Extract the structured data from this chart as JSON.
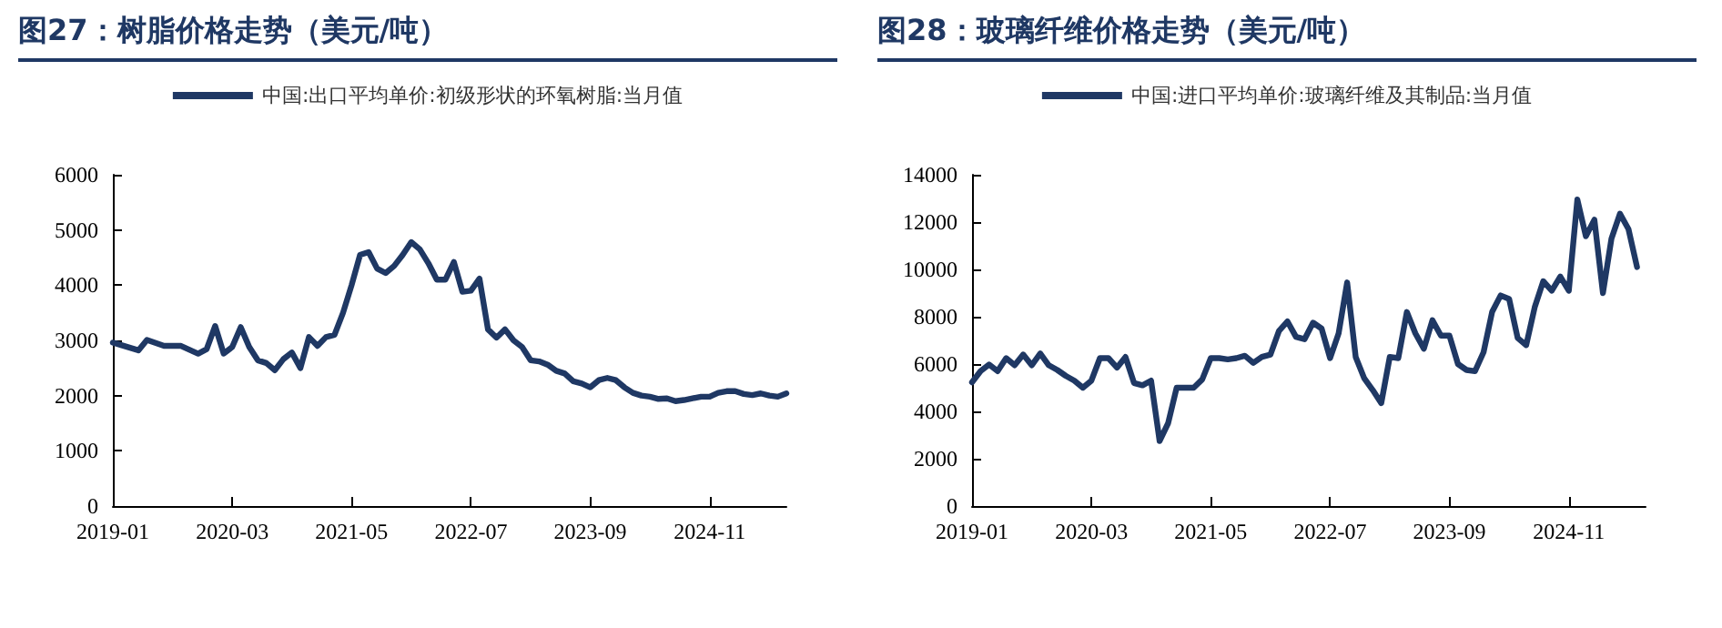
{
  "chart_data": [
    {
      "type": "line",
      "title": "图27：树脂价格走势（美元/吨）",
      "legend": "top",
      "grid": false,
      "marker": "none",
      "line_style": "solid",
      "x": [
        "2019-01",
        "2019-04",
        "2019-05",
        "2019-07",
        "2019-09",
        "2019-11",
        "2019-12",
        "2020-01",
        "2020-02",
        "2020-03",
        "2020-04",
        "2020-05",
        "2020-06",
        "2020-07",
        "2020-08",
        "2020-09",
        "2020-10",
        "2020-11",
        "2020-12",
        "2021-01",
        "2021-02",
        "2021-03",
        "2021-04",
        "2021-05",
        "2021-06",
        "2021-07",
        "2021-08",
        "2021-09",
        "2021-10",
        "2021-11",
        "2021-12",
        "2022-01",
        "2022-02",
        "2022-03",
        "2022-04",
        "2022-05",
        "2022-06",
        "2022-07",
        "2022-08",
        "2022-09",
        "2022-10",
        "2022-11",
        "2022-12",
        "2023-01",
        "2023-02",
        "2023-03",
        "2023-04",
        "2023-05",
        "2023-06",
        "2023-07",
        "2023-08",
        "2023-09",
        "2023-10",
        "2023-11",
        "2023-12",
        "2024-01",
        "2024-02",
        "2024-03",
        "2024-04",
        "2024-05",
        "2024-06",
        "2024-07",
        "2024-08",
        "2024-09",
        "2024-10",
        "2024-11",
        "2024-12",
        "2025-01",
        "2025-02",
        "2025-03",
        "2025-04",
        "2025-05",
        "2025-06",
        "2025-07",
        "2025-08"
      ],
      "series": [
        {
          "name": "中国:出口平均单价:初级形状的环氧树脂:当月值",
          "color": "#1f3864",
          "values": [
            2960,
            2820,
            3010,
            2900,
            2900,
            2760,
            2840,
            3260,
            2760,
            2880,
            3240,
            2880,
            2640,
            2590,
            2460,
            2660,
            2780,
            2500,
            3060,
            2900,
            3060,
            3100,
            3500,
            4000,
            4550,
            4600,
            4300,
            4220,
            4350,
            4550,
            4780,
            4650,
            4400,
            4100,
            4100,
            4420,
            3880,
            3900,
            4120,
            3200,
            3050,
            3200,
            3000,
            2880,
            2640,
            2620,
            2560,
            2450,
            2400,
            2260,
            2220,
            2150,
            2280,
            2320,
            2280,
            2150,
            2050,
            2000,
            1980,
            1940,
            1950,
            1900,
            1920,
            1950,
            1980,
            1980,
            2050,
            2080,
            2080,
            2030,
            2010,
            2040,
            2000,
            1980,
            2040
          ]
        }
      ],
      "xlim": [
        "2019-01",
        "2025-08"
      ],
      "xticks": [
        "2019-01",
        "2020-03",
        "2021-05",
        "2022-07",
        "2023-09",
        "2024-11"
      ],
      "ylim": [
        0,
        6000
      ],
      "yticks": [
        0,
        1000,
        2000,
        3000,
        4000,
        5000,
        6000
      ]
    },
    {
      "type": "line",
      "title": "图28：玻璃纤维价格走势（美元/吨）",
      "legend": "top",
      "grid": false,
      "marker": "none",
      "line_style": "solid",
      "x": [
        "2019-01",
        "2019-02",
        "2019-03",
        "2019-04",
        "2019-05",
        "2019-06",
        "2019-07",
        "2019-08",
        "2019-09",
        "2019-10",
        "2019-11",
        "2019-12",
        "2020-01",
        "2020-02",
        "2020-03",
        "2020-04",
        "2020-05",
        "2020-06",
        "2020-07",
        "2020-08",
        "2020-09",
        "2020-10",
        "2020-11",
        "2020-12",
        "2021-01",
        "2021-02",
        "2021-03",
        "2021-04",
        "2021-05",
        "2021-06",
        "2021-07",
        "2021-08",
        "2021-09",
        "2021-10",
        "2021-11",
        "2021-12",
        "2022-01",
        "2022-02",
        "2022-03",
        "2022-04",
        "2022-05",
        "2022-06",
        "2022-07",
        "2022-08",
        "2022-09",
        "2022-10",
        "2022-11",
        "2022-12",
        "2023-01",
        "2023-02",
        "2023-03",
        "2023-04",
        "2023-05",
        "2023-06",
        "2023-07",
        "2023-08",
        "2023-09",
        "2023-10",
        "2023-11",
        "2023-12",
        "2024-01",
        "2024-02",
        "2024-03",
        "2024-04",
        "2024-05",
        "2024-06",
        "2024-07",
        "2024-08",
        "2024-09",
        "2024-10",
        "2024-11",
        "2024-12",
        "2025-01",
        "2025-02",
        "2025-03",
        "2025-04",
        "2025-05",
        "2025-06",
        "2025-07"
      ],
      "series": [
        {
          "name": "中国:进口平均单价:玻璃纤维及其制品:当月值",
          "color": "#1f3864",
          "values": [
            5230,
            5700,
            5980,
            5700,
            6250,
            5950,
            6400,
            5950,
            6450,
            5950,
            5750,
            5500,
            5300,
            5000,
            5300,
            6250,
            6250,
            5850,
            6300,
            5200,
            5100,
            5300,
            2750,
            3500,
            5000,
            5000,
            5000,
            5350,
            6250,
            6250,
            6200,
            6250,
            6350,
            6050,
            6300,
            6400,
            7400,
            7800,
            7150,
            7050,
            7750,
            7500,
            6250,
            7300,
            9450,
            6300,
            5400,
            4900,
            4350,
            6300,
            6250,
            8200,
            7300,
            6650,
            7850,
            7200,
            7200,
            6000,
            5750,
            5700,
            6500,
            8200,
            8900,
            8750,
            7100,
            6800,
            8400,
            9500,
            9100,
            9700,
            9100,
            12950,
            11400,
            12100,
            9000,
            11300,
            12350,
            11700,
            10100
          ]
        }
      ],
      "xlim": [
        "2019-01",
        "2025-08"
      ],
      "xticks": [
        "2019-01",
        "2020-03",
        "2021-05",
        "2022-07",
        "2023-09",
        "2024-11"
      ],
      "ylim": [
        0,
        14000
      ],
      "yticks": [
        0,
        2000,
        4000,
        6000,
        8000,
        10000,
        12000,
        14000
      ]
    }
  ]
}
